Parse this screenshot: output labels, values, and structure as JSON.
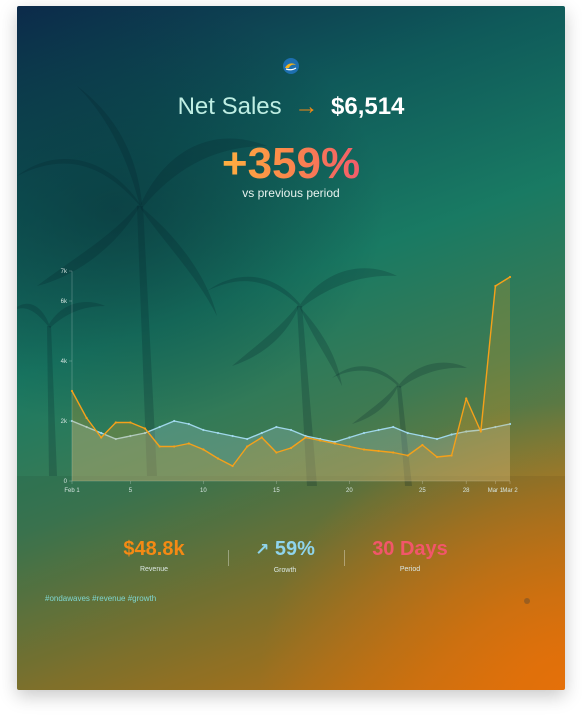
{
  "header": {
    "label": "Net Sales",
    "arrow_icon": "right-arrow-icon",
    "value": "$6,514",
    "percent_change": "+359%",
    "subtitle": "vs previous period"
  },
  "colors": {
    "accent_orange": "#f58a14",
    "growth_blue": "#8fd4ec",
    "period_pink": "#f2566a",
    "line_current": "#f5a11a",
    "line_previous": "#9fd7ea"
  },
  "chart_data": {
    "type": "line",
    "x_ticks": [
      "Feb 1",
      "5",
      "10",
      "15",
      "20",
      "25",
      "28",
      "Mar 1",
      "Mar 2"
    ],
    "y_ticks": [
      "0",
      "2k",
      "4k",
      "6k",
      "7k"
    ],
    "ylim": [
      0,
      7000
    ],
    "grid": false,
    "series": [
      {
        "values": [
          3000,
          2100,
          1450,
          1950,
          1950,
          1750,
          1150,
          1150,
          1250,
          1050,
          750,
          500,
          1150,
          1450,
          950,
          1100,
          1450,
          1350,
          1250,
          1150,
          1050,
          1000,
          950,
          850,
          1200,
          800,
          850,
          2750,
          1650,
          6500,
          6800
        ]
      },
      {
        "values": [
          2000,
          1800,
          1600,
          1400,
          1500,
          1600,
          1800,
          2000,
          1900,
          1700,
          1600,
          1500,
          1400,
          1600,
          1800,
          1700,
          1500,
          1400,
          1300,
          1450,
          1600,
          1700,
          1800,
          1600,
          1500,
          1400,
          1550,
          1650,
          1700,
          1800,
          1900
        ]
      }
    ]
  },
  "stats": [
    {
      "value": "$48.8k",
      "label": "Revenue"
    },
    {
      "icon": "up-right-arrow-icon",
      "value": "59%",
      "label": "Growth"
    },
    {
      "value": "30 Days",
      "label": "Period"
    }
  ],
  "hashtags": "#ondawaves #revenue #growth"
}
